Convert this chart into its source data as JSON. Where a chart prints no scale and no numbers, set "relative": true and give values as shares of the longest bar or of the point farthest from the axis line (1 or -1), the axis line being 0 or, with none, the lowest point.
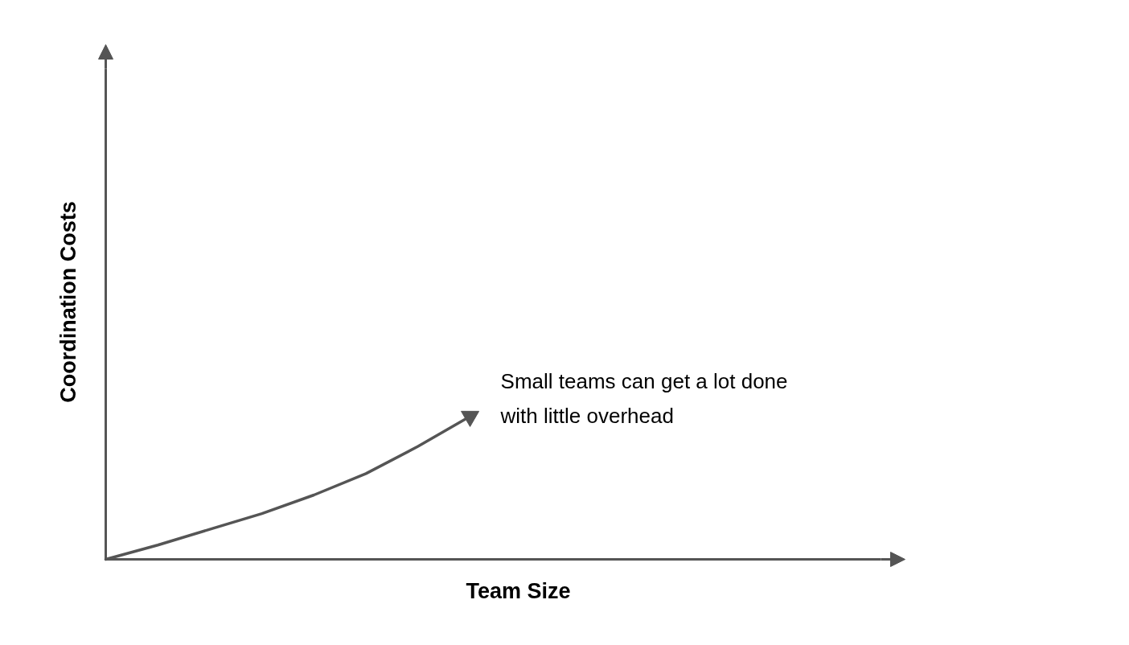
{
  "chart_data": {
    "type": "line",
    "relative": true,
    "xlabel": "Team Size",
    "ylabel": "Coordination Costs",
    "categories": [
      null,
      null,
      null,
      null,
      null,
      null,
      null,
      null
    ],
    "series": [
      {
        "color": "#555555",
        "values": [
          0,
          0.1,
          0.21,
          0.32,
          0.45,
          0.6,
          0.79,
          1
        ]
      }
    ],
    "annotations": [
      "Small teams can get a lot done with little overhead"
    ],
    "marker": "none",
    "line_style": "solid"
  }
}
